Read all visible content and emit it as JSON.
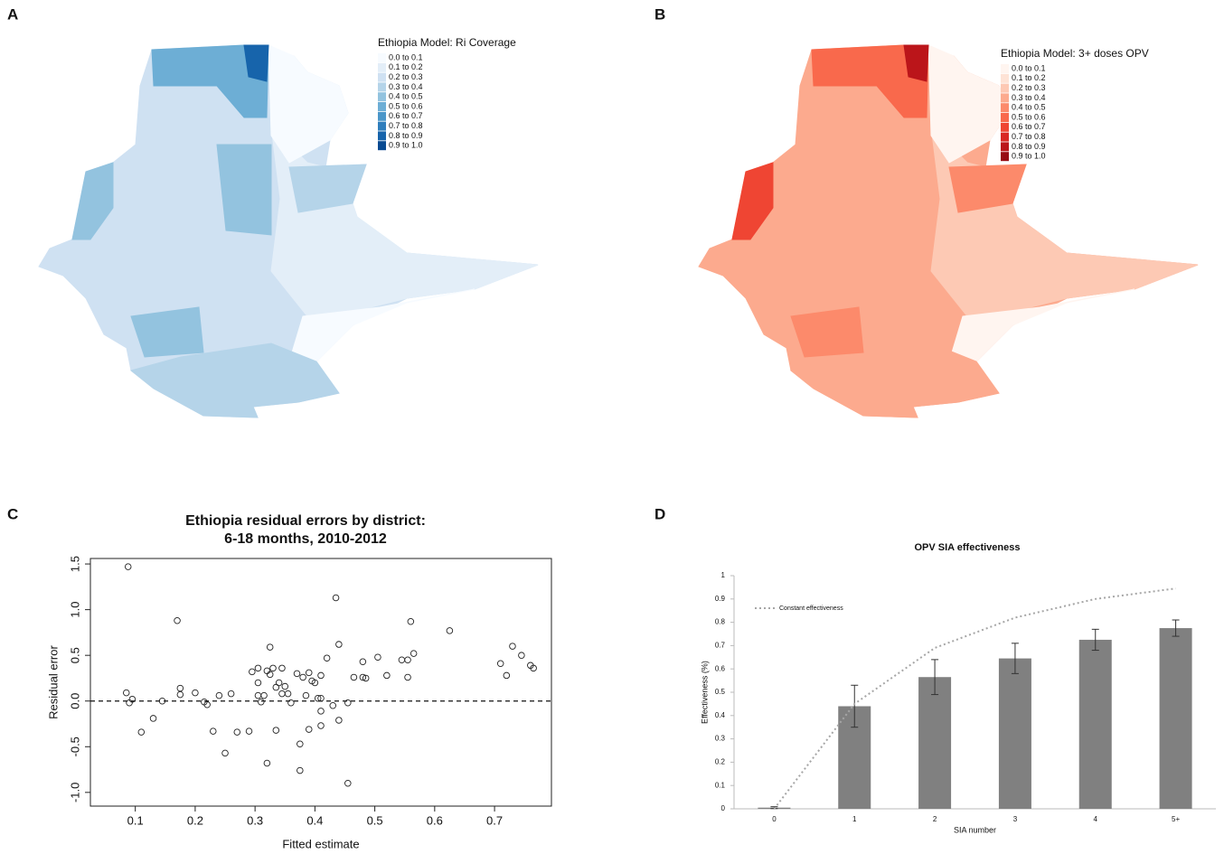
{
  "panel_labels": [
    "A",
    "B",
    "C",
    "D"
  ],
  "chart_data": [
    {
      "type": "choropleth",
      "title": "Ethiopia Model: Ri Coverage",
      "legend": [
        "0.0 to 0.1",
        "0.1 to 0.2",
        "0.2 to 0.3",
        "0.3 to 0.4",
        "0.4 to 0.5",
        "0.5 to 0.6",
        "0.6 to 0.7",
        "0.7 to 0.8",
        "0.8 to 0.9",
        "0.9 to 1.0"
      ],
      "colors": [
        "#f7fbff",
        "#e3eef8",
        "#cfe1f2",
        "#b5d4e9",
        "#93c3df",
        "#6daed5",
        "#4b97c9",
        "#2f7ebc",
        "#1764ab",
        "#084a91"
      ]
    },
    {
      "type": "choropleth",
      "title": "Ethiopia Model: 3+ doses OPV",
      "legend": [
        "0.0 to 0.1",
        "0.1 to 0.2",
        "0.2 to 0.3",
        "0.3 to 0.4",
        "0.4 to 0.5",
        "0.5 to 0.6",
        "0.6 to 0.7",
        "0.7 to 0.8",
        "0.8 to 0.9",
        "0.9 to 1.0"
      ],
      "colors": [
        "#fff5f0",
        "#fee3d6",
        "#fdc9b4",
        "#fcaa8e",
        "#fc8a6b",
        "#f9694c",
        "#ef4533",
        "#d92723",
        "#bb151a",
        "#970b13"
      ]
    },
    {
      "type": "scatter",
      "title": [
        "Ethiopia residual errors by district:",
        "6-18 months, 2010-2012"
      ],
      "x_label": "Fitted estimate",
      "y_label": "Residual error",
      "x": [
        0.085,
        0.09,
        0.095,
        0.088,
        0.11,
        0.13,
        0.145,
        0.17,
        0.175,
        0.175,
        0.2,
        0.215,
        0.22,
        0.23,
        0.24,
        0.25,
        0.26,
        0.27,
        0.29,
        0.295,
        0.305,
        0.305,
        0.305,
        0.31,
        0.315,
        0.32,
        0.32,
        0.325,
        0.325,
        0.33,
        0.335,
        0.335,
        0.34,
        0.345,
        0.345,
        0.35,
        0.355,
        0.36,
        0.37,
        0.375,
        0.375,
        0.38,
        0.385,
        0.39,
        0.39,
        0.395,
        0.4,
        0.405,
        0.41,
        0.41,
        0.41,
        0.41,
        0.42,
        0.43,
        0.435,
        0.44,
        0.44,
        0.455,
        0.455,
        0.465,
        0.48,
        0.48,
        0.485,
        0.505,
        0.52,
        0.545,
        0.555,
        0.555,
        0.56,
        0.565,
        0.625,
        0.71,
        0.72,
        0.73,
        0.745,
        0.76,
        0.765
      ],
      "y": [
        0.09,
        -0.02,
        0.02,
        1.47,
        -0.34,
        -0.19,
        0.0,
        0.88,
        0.14,
        0.07,
        0.09,
        -0.01,
        -0.04,
        -0.33,
        0.06,
        -0.57,
        0.08,
        -0.34,
        -0.33,
        0.32,
        0.36,
        0.06,
        0.2,
        -0.01,
        0.06,
        0.33,
        -0.68,
        0.59,
        0.29,
        0.36,
        -0.32,
        0.15,
        0.2,
        0.08,
        0.36,
        0.16,
        0.08,
        -0.02,
        0.3,
        -0.47,
        -0.76,
        0.26,
        0.06,
        -0.31,
        0.31,
        0.22,
        0.2,
        0.03,
        0.28,
        -0.11,
        0.03,
        -0.27,
        0.47,
        -0.05,
        1.13,
        0.62,
        -0.21,
        -0.9,
        -0.02,
        0.26,
        0.43,
        0.26,
        0.25,
        0.48,
        0.28,
        0.45,
        0.26,
        0.45,
        0.87,
        0.52,
        0.77,
        0.41,
        0.28,
        0.6,
        0.5,
        0.39,
        0.36
      ],
      "reference_line": 0,
      "xlim": [
        0.025,
        0.795
      ],
      "ylim": [
        -1.15,
        1.56
      ],
      "xticks": [
        0.1,
        0.2,
        0.3,
        0.4,
        0.5,
        0.6,
        0.7
      ],
      "yticks": [
        {
          "value": -1,
          "label": "-1.0"
        },
        -0.5,
        {
          "value": 0,
          "label": "0.0"
        },
        0.5,
        {
          "value": 1,
          "label": "1.0"
        },
        1.5
      ]
    },
    {
      "type": "bar",
      "title": "OPV SIA effectiveness",
      "x_label": "SIA number",
      "y_label": "Effectiveness (%)",
      "categories": [
        "0",
        "1",
        "2",
        "3",
        "4",
        "5+"
      ],
      "values": [
        0.005,
        0.44,
        0.565,
        0.645,
        0.725,
        0.775
      ],
      "errors": [
        0.004,
        0.09,
        0.075,
        0.065,
        0.045,
        0.035
      ],
      "color": "#808080",
      "line": {
        "name": "Constant effectiveness",
        "color": "#a6a6a6",
        "values": [
          0,
          0.45,
          0.69,
          0.82,
          0.9,
          0.945
        ]
      },
      "ylim": [
        0,
        1
      ],
      "yticks": [
        0,
        0.1,
        0.2,
        0.3,
        0.4,
        0.5,
        0.6,
        0.7,
        0.8,
        0.9,
        1
      ]
    }
  ]
}
